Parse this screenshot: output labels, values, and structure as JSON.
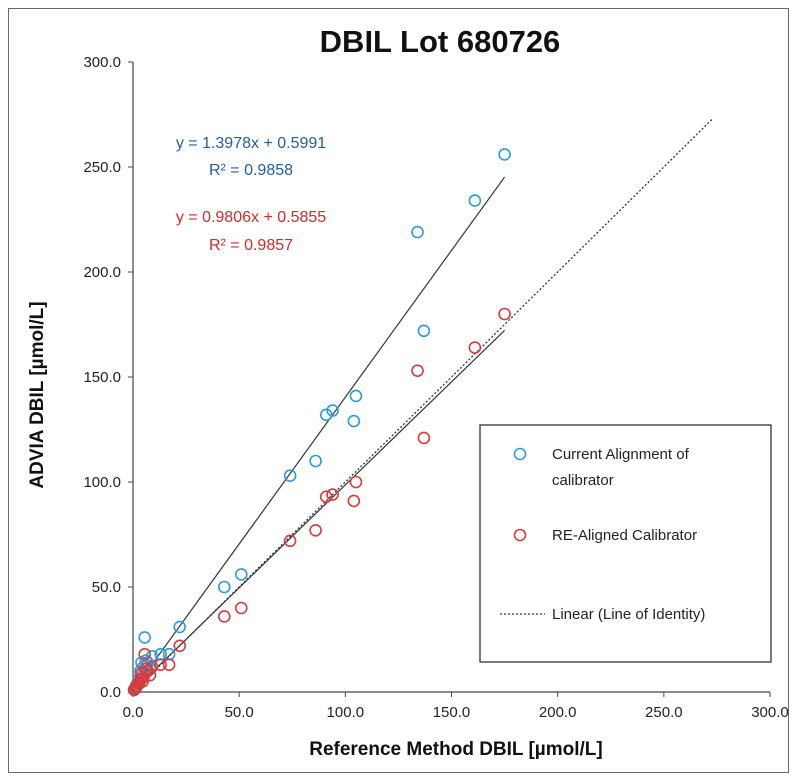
{
  "chart_data": {
    "type": "scatter",
    "title": "DBIL Lot 680726",
    "xlabel": "Reference Method DBIL [µmol/L]",
    "ylabel": "ADVIA DBIL [µmol/L]",
    "xlim": [
      0,
      300
    ],
    "ylim": [
      0,
      300
    ],
    "x_ticks": [
      "0.0",
      "50.0",
      "100.0",
      "150.0",
      "200.0",
      "250.0",
      "300.0"
    ],
    "y_ticks": [
      "0.0",
      "50.0",
      "100.0",
      "150.0",
      "200.0",
      "250.0",
      "300.0"
    ],
    "grid": false,
    "legend_position": "right",
    "series": [
      {
        "name": "Current Alignment of calibrator",
        "color": "#2e9bd6",
        "marker": "open-circle",
        "points": [
          [
            0.5,
            1.0
          ],
          [
            1.0,
            2.0
          ],
          [
            1.5,
            3.0
          ],
          [
            2.0,
            4.0
          ],
          [
            2.5,
            6.0
          ],
          [
            3.0,
            5.0
          ],
          [
            3.5,
            10.0
          ],
          [
            4.0,
            14.0
          ],
          [
            4.5,
            8.0
          ],
          [
            5.0,
            12.0
          ],
          [
            5.5,
            26.0
          ],
          [
            6.0,
            15.0
          ],
          [
            7.0,
            14.0
          ],
          [
            8.0,
            11.0
          ],
          [
            9.0,
            17.0
          ],
          [
            13.0,
            18.0
          ],
          [
            17.0,
            18.0
          ],
          [
            22.0,
            31.0
          ],
          [
            43.0,
            50.0
          ],
          [
            51.0,
            56.0
          ],
          [
            74.0,
            103.0
          ],
          [
            86.0,
            110.0
          ],
          [
            91.0,
            132.0
          ],
          [
            94.0,
            134.0
          ],
          [
            104.0,
            129.0
          ],
          [
            105.0,
            141.0
          ],
          [
            134.0,
            219.0
          ],
          [
            137.0,
            172.0
          ],
          [
            161.0,
            234.0
          ],
          [
            175.0,
            256.0
          ]
        ]
      },
      {
        "name": "RE-Aligned Calibrator",
        "color": "#d93b3b",
        "marker": "open-circle",
        "points": [
          [
            0.5,
            1.0
          ],
          [
            1.0,
            1.5
          ],
          [
            1.5,
            2.5
          ],
          [
            2.0,
            3.0
          ],
          [
            2.5,
            4.0
          ],
          [
            3.0,
            4.5
          ],
          [
            3.5,
            6.0
          ],
          [
            4.0,
            9.0
          ],
          [
            4.5,
            5.0
          ],
          [
            5.0,
            7.0
          ],
          [
            5.5,
            18.0
          ],
          [
            6.0,
            11.0
          ],
          [
            7.0,
            10.0
          ],
          [
            8.0,
            8.0
          ],
          [
            9.0,
            12.0
          ],
          [
            13.0,
            13.0
          ],
          [
            17.0,
            13.0
          ],
          [
            22.0,
            22.0
          ],
          [
            43.0,
            36.0
          ],
          [
            51.0,
            40.0
          ],
          [
            74.0,
            72.0
          ],
          [
            86.0,
            77.0
          ],
          [
            91.0,
            93.0
          ],
          [
            94.0,
            94.0
          ],
          [
            104.0,
            91.0
          ],
          [
            105.0,
            100.0
          ],
          [
            134.0,
            153.0
          ],
          [
            137.0,
            121.0
          ],
          [
            161.0,
            164.0
          ],
          [
            175.0,
            180.0
          ]
        ]
      }
    ],
    "trendlines": [
      {
        "series": "Current Alignment of calibrator",
        "slope": 1.3978,
        "intercept": 0.5991,
        "x_range": [
          0,
          175
        ],
        "equation": "y = 1.3978x + 0.5991",
        "r2": "R² = 0.9858",
        "color": "#1f5f9a"
      },
      {
        "series": "RE-Aligned Calibrator",
        "slope": 0.9806,
        "intercept": 0.5855,
        "x_range": [
          0,
          175
        ],
        "equation": "y = 0.9806x + 0.5855",
        "r2": "R² = 0.9857",
        "color": "#d42a2a"
      }
    ],
    "identity_line": {
      "name": "Linear (Line of Identity)",
      "x_range": [
        0,
        273
      ],
      "style": "dotted"
    },
    "legend": [
      {
        "label": "Current Alignment of\ncalibrator",
        "color": "#2e9bd6",
        "marker": "open-circle"
      },
      {
        "label": "RE-Aligned Calibrator",
        "color": "#d93b3b",
        "marker": "open-circle"
      },
      {
        "label": "Linear (Line of Identity)",
        "color": "#333333",
        "marker": "dotted-line"
      }
    ]
  }
}
